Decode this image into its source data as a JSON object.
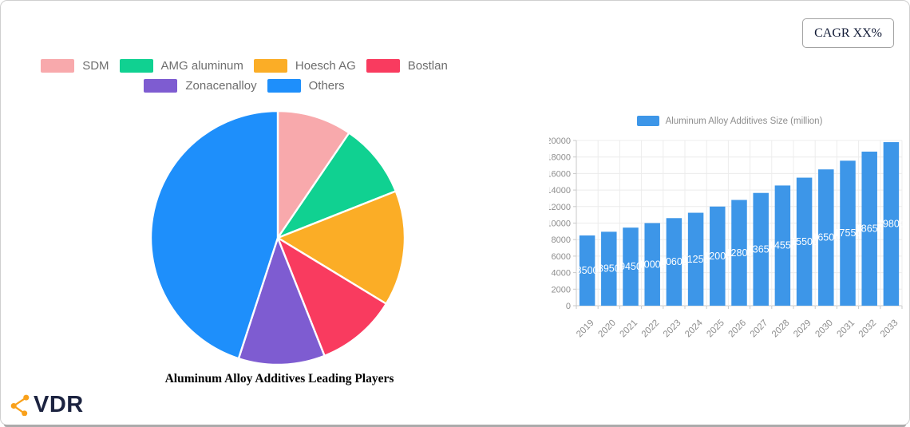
{
  "cagr_label": "CAGR XX%",
  "brand": {
    "name": "VDR",
    "icon": "share-network-icon",
    "icon_color": "#F9A11B",
    "text_color": "#1C2340"
  },
  "pie_section": {
    "title": "Aluminum Alloy Additives Leading Players",
    "legend_rows": [
      [
        0,
        1,
        2,
        3
      ],
      [
        4,
        5
      ]
    ]
  },
  "bar_section": {
    "legend_label": "Aluminum Alloy Additives Size (million)"
  },
  "chart_data": [
    {
      "type": "pie",
      "title": "Aluminum Alloy Additives Leading Players",
      "labels": [
        "SDM",
        "AMG aluminum",
        "Hoesch AG",
        "Bostlan",
        "Zonacenalloy",
        "Others"
      ],
      "values": [
        9.5,
        9.5,
        14.7,
        10.3,
        11,
        45
      ],
      "colors": [
        "#F8A9AC",
        "#10D191",
        "#FBAD26",
        "#F93B5F",
        "#7E5CD1",
        "#1E8FFB"
      ],
      "start_angle": "12-oclock",
      "direction": "clockwise",
      "legend_position": "top",
      "slice_border_color": "#FFFFFF"
    },
    {
      "type": "bar",
      "series_name": "Aluminum Alloy Additives Size (million)",
      "categories": [
        "2019",
        "2020",
        "2021",
        "2022",
        "2023",
        "2024",
        "2025",
        "2026",
        "2027",
        "2028",
        "2029",
        "2030",
        "2031",
        "2032",
        "2033"
      ],
      "values": [
        8500,
        8950,
        9450,
        10000,
        10600,
        11250,
        12000,
        12800,
        13650,
        14550,
        15500,
        16500,
        17550,
        18650,
        19800
      ],
      "bar_color": "#3D96E8",
      "value_label_style": "white-inside-center",
      "ylim": [
        0,
        20000
      ],
      "ytick_step": 2000,
      "x_tick_rotation": -45,
      "grid": true,
      "grid_color": "#ECECEC",
      "axis_line_color": "#C9C9C9",
      "axis_text_color": "#8E8E8E",
      "legend_position": "top"
    }
  ]
}
